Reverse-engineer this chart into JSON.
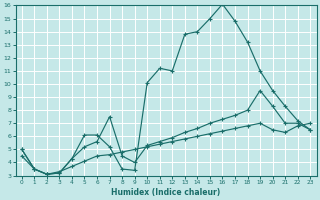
{
  "xlabel": "Humidex (Indice chaleur)",
  "ylabel": "",
  "xlim": [
    -0.5,
    23.5
  ],
  "ylim": [
    3,
    16
  ],
  "xticks": [
    0,
    1,
    2,
    3,
    4,
    5,
    6,
    7,
    8,
    9,
    10,
    11,
    12,
    13,
    14,
    15,
    16,
    17,
    18,
    19,
    20,
    21,
    22,
    23
  ],
  "yticks": [
    3,
    4,
    5,
    6,
    7,
    8,
    9,
    10,
    11,
    12,
    13,
    14,
    15,
    16
  ],
  "bg_color": "#c5e8e8",
  "line_color": "#1a6e6a",
  "grid_color": "#ffffff",
  "line1_x": [
    0,
    1,
    2,
    3,
    4,
    5,
    6,
    7,
    8,
    9,
    10,
    11,
    12,
    13,
    14,
    15,
    16,
    17,
    18,
    19,
    20,
    21,
    22,
    23
  ],
  "line1_y": [
    5.0,
    3.5,
    3.1,
    3.2,
    4.3,
    6.1,
    6.1,
    5.2,
    3.5,
    3.4,
    10.1,
    11.2,
    11.0,
    13.8,
    14.0,
    15.0,
    16.1,
    14.8,
    13.2,
    11.0,
    9.5,
    8.3,
    7.2,
    6.5
  ],
  "line2_x": [
    0,
    1,
    2,
    3,
    4,
    5,
    6,
    7,
    8,
    9,
    10,
    11,
    12,
    13,
    14,
    15,
    16,
    17,
    18,
    19,
    20,
    21,
    22,
    23
  ],
  "line2_y": [
    5.0,
    3.5,
    3.1,
    3.2,
    4.3,
    5.2,
    5.6,
    7.5,
    4.5,
    4.0,
    5.3,
    5.6,
    5.9,
    6.3,
    6.6,
    7.0,
    7.3,
    7.6,
    8.0,
    9.5,
    8.3,
    7.0,
    7.0,
    6.5
  ],
  "line3_x": [
    0,
    1,
    2,
    3,
    4,
    5,
    6,
    7,
    8,
    9,
    10,
    11,
    12,
    13,
    14,
    15,
    16,
    17,
    18,
    19,
    20,
    21,
    22,
    23
  ],
  "line3_y": [
    4.5,
    3.5,
    3.1,
    3.3,
    3.7,
    4.1,
    4.5,
    4.6,
    4.8,
    5.0,
    5.2,
    5.4,
    5.6,
    5.8,
    6.0,
    6.2,
    6.4,
    6.6,
    6.8,
    7.0,
    6.5,
    6.3,
    6.8,
    7.0
  ]
}
